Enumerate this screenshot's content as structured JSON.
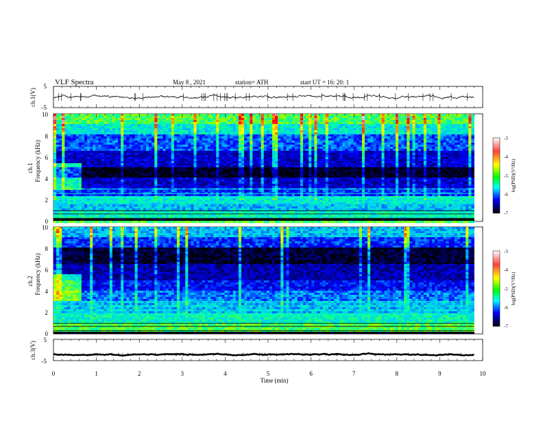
{
  "header": {
    "title": "VLF  Spectra",
    "date": "May 8  , 2021",
    "station": "station= ATH",
    "start": "start  UT  =    16: 20: 1"
  },
  "axes": {
    "time_label": "Time  (min)",
    "time_ticks": [
      "0",
      "1",
      "2",
      "3",
      "4",
      "5",
      "6",
      "7",
      "8",
      "9",
      "10"
    ],
    "ch1_label": "ch.1(V)",
    "ch3_label": "ch.3(V)",
    "ch1_ticks": [
      "5",
      "-5"
    ],
    "ch3_ticks": [
      "5",
      "-5"
    ],
    "spec1_label_top": "ch.1",
    "spec1_label_bottom": "Frequency  (kHz)",
    "spec2_label_top": "ch.2",
    "spec2_label_bottom": "Frequency  (kHz)",
    "freq_ticks": [
      "10",
      "8",
      "6",
      "4",
      "2",
      "0"
    ]
  },
  "colorbar": {
    "label": "log(PSD)(V²/Hz)",
    "ticks": [
      "-3",
      "-4",
      "-5",
      "-6",
      "-7"
    ],
    "colors": [
      "#ffffff",
      "#ff0000",
      "#ffff00",
      "#00ff00",
      "#00ffff",
      "#0000ff",
      "#000000"
    ]
  },
  "chart_data": [
    {
      "type": "line",
      "name": "ch.1",
      "xlabel": "Time  (min)",
      "ylabel": "ch.1(V)",
      "xlim": [
        0,
        10
      ],
      "ylim": [
        -5,
        5
      ],
      "x_extent": [
        0,
        9.8
      ],
      "baseline": 0,
      "amplitude": 0.6
    },
    {
      "type": "heatmap",
      "name": "ch.1",
      "xlabel": "Time  (min)",
      "ylabel": "Frequency  (kHz)",
      "xlim": [
        0,
        10
      ],
      "ylim": [
        0,
        10
      ],
      "x_extent": [
        0,
        9.8
      ],
      "zlim": [
        -7,
        -3
      ],
      "bands_khz": [
        {
          "from": 0,
          "to": 0.2,
          "level": -7
        },
        {
          "from": 0.2,
          "to": 1.0,
          "level": -5.3
        },
        {
          "from": 1.0,
          "to": 1.6,
          "level": -5.6
        },
        {
          "from": 1.6,
          "to": 2.3,
          "level": -5.4
        },
        {
          "from": 2.3,
          "to": 3.1,
          "level": -6.0
        },
        {
          "from": 3.1,
          "to": 4.0,
          "level": -6.3
        },
        {
          "from": 4.0,
          "to": 5.0,
          "level": -6.9
        },
        {
          "from": 5.0,
          "to": 6.5,
          "level": -6.3
        },
        {
          "from": 6.5,
          "to": 8.0,
          "level": -5.9
        },
        {
          "from": 8.0,
          "to": 9.0,
          "level": -5.4
        },
        {
          "from": 9.0,
          "to": 10.0,
          "level": -5.0
        }
      ]
    },
    {
      "type": "heatmap",
      "name": "ch.2",
      "xlabel": "Time  (min)",
      "ylabel": "Frequency  (kHz)",
      "xlim": [
        0,
        10
      ],
      "ylim": [
        0,
        10
      ],
      "x_extent": [
        0,
        9.8
      ],
      "zlim": [
        -7,
        -3
      ],
      "bands_khz": [
        {
          "from": 0,
          "to": 0.2,
          "level": -7
        },
        {
          "from": 0.2,
          "to": 1.0,
          "level": -5.0
        },
        {
          "from": 1.0,
          "to": 2.0,
          "level": -5.3
        },
        {
          "from": 2.0,
          "to": 3.0,
          "level": -5.6
        },
        {
          "from": 3.0,
          "to": 4.0,
          "level": -5.8
        },
        {
          "from": 4.0,
          "to": 5.0,
          "level": -6.1
        },
        {
          "from": 5.0,
          "to": 6.5,
          "level": -6.4
        },
        {
          "from": 6.5,
          "to": 8.0,
          "level": -6.8
        },
        {
          "from": 8.0,
          "to": 9.0,
          "level": -6.0
        },
        {
          "from": 9.0,
          "to": 10.0,
          "level": -5.6
        }
      ]
    },
    {
      "type": "line",
      "name": "ch.3",
      "xlabel": "Time  (min)",
      "ylabel": "ch.3(V)",
      "xlim": [
        0,
        10
      ],
      "ylim": [
        -5,
        5
      ],
      "x_extent": [
        0,
        9.8
      ],
      "baseline": -2.1,
      "amplitude": 0.25
    }
  ]
}
